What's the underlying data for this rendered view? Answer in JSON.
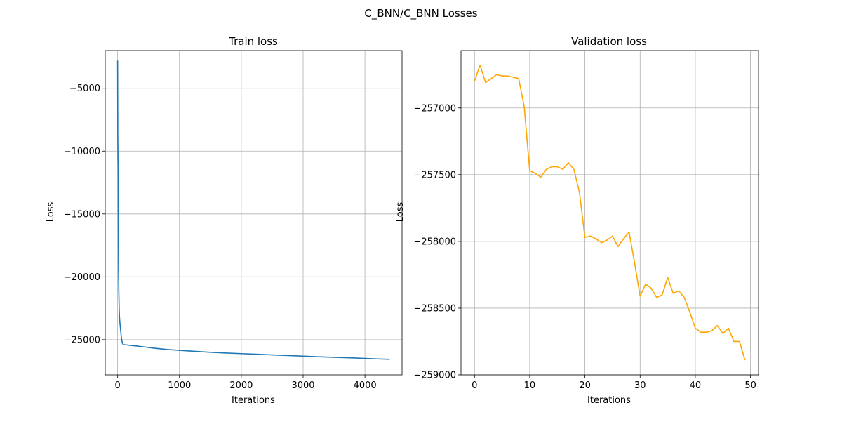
{
  "suptitle": "C_BNN/C_BNN Losses",
  "chart_data": [
    {
      "type": "line",
      "title": "Train loss",
      "xlabel": "Iterations",
      "ylabel": "Loss",
      "xlim": [
        -200,
        4600
      ],
      "ylim": [
        -27800,
        -2000
      ],
      "xticks": [
        0,
        1000,
        2000,
        3000,
        4000
      ],
      "xtick_labels": [
        "0",
        "1000",
        "2000",
        "3000",
        "4000"
      ],
      "yticks": [
        -5000,
        -10000,
        -15000,
        -20000,
        -25000
      ],
      "ytick_labels": [
        "−5000",
        "−10000",
        "−15000",
        "−20000",
        "−25000"
      ],
      "grid": true,
      "series": [
        {
          "color": "#1f77b4",
          "x": [
            0,
            3,
            6,
            9,
            12,
            15,
            20,
            25,
            30,
            40,
            50,
            60,
            70,
            80,
            90,
            100,
            150,
            200,
            300,
            400,
            500,
            600,
            800,
            1000,
            1200,
            1500,
            1800,
            2000,
            2200,
            2500,
            2800,
            3000,
            3200,
            3500,
            3800,
            4000,
            4200,
            4400
          ],
          "y": [
            -2800,
            -9000,
            -10500,
            -11200,
            -15800,
            -19500,
            -21200,
            -22500,
            -23200,
            -23800,
            -24300,
            -24800,
            -25100,
            -25300,
            -25380,
            -25400,
            -25420,
            -25450,
            -25500,
            -25560,
            -25620,
            -25680,
            -25780,
            -25850,
            -25910,
            -26000,
            -26070,
            -26110,
            -26150,
            -26210,
            -26270,
            -26310,
            -26350,
            -26400,
            -26450,
            -26490,
            -26530,
            -26560
          ]
        }
      ]
    },
    {
      "type": "line",
      "title": "Validation loss",
      "xlabel": "Iterations",
      "ylabel": "Loss",
      "xlim": [
        -2.45,
        51.45
      ],
      "ylim": [
        -259000,
        -256570
      ],
      "xticks": [
        0,
        10,
        20,
        30,
        40,
        50
      ],
      "xtick_labels": [
        "0",
        "10",
        "20",
        "30",
        "40",
        "50"
      ],
      "yticks": [
        -257000,
        -257500,
        -258000,
        -258500,
        -259000
      ],
      "ytick_labels": [
        "−257000",
        "−257500",
        "−258000",
        "−258500",
        "−259000"
      ],
      "grid": true,
      "series": [
        {
          "color": "#ffa500",
          "x": [
            0,
            1,
            2,
            3,
            4,
            5,
            6,
            7,
            8,
            9,
            10,
            11,
            12,
            13,
            14,
            15,
            16,
            17,
            18,
            19,
            20,
            21,
            22,
            23,
            24,
            25,
            26,
            27,
            28,
            29,
            30,
            31,
            32,
            33,
            34,
            35,
            36,
            37,
            38,
            39,
            40,
            41,
            42,
            43,
            44,
            45,
            46,
            47,
            48,
            49
          ],
          "y": [
            -256800,
            -256680,
            -256810,
            -256780,
            -256750,
            -256760,
            -256760,
            -256770,
            -256780,
            -256990,
            -257470,
            -257490,
            -257520,
            -257460,
            -257440,
            -257440,
            -257460,
            -257410,
            -257460,
            -257630,
            -257970,
            -257960,
            -257980,
            -258010,
            -257990,
            -257960,
            -258040,
            -257980,
            -257930,
            -258160,
            -258410,
            -258320,
            -258350,
            -258420,
            -258400,
            -258270,
            -258390,
            -258370,
            -258420,
            -258530,
            -258650,
            -258680,
            -258680,
            -258670,
            -258630,
            -258690,
            -258650,
            -258750,
            -258750,
            -258890
          ]
        }
      ]
    }
  ]
}
